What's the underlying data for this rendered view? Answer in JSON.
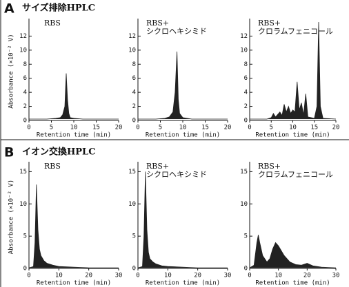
{
  "panels": [
    {
      "letter": "A",
      "title": "サイズ排除HPLC"
    },
    {
      "letter": "B",
      "title": "イオン交換HPLC"
    }
  ],
  "chart_data": [
    {
      "type": "area",
      "title": [
        "RBS"
      ],
      "y_label": "Absorbance (×10⁻² V)",
      "x_label": "Retention time (min)",
      "color": "#222222",
      "x": [
        0,
        2,
        4,
        6,
        7,
        7.5,
        8,
        8.3,
        8.6,
        8.9,
        9.2,
        10,
        12,
        16,
        20
      ],
      "values": [
        0.2,
        0.2,
        0.2,
        0.3,
        0.4,
        0.8,
        2,
        6.7,
        3,
        1,
        0.4,
        0.3,
        0.2,
        0.2,
        0.2
      ],
      "xlim": [
        0,
        20
      ],
      "xticks": [
        0,
        5,
        10,
        15,
        20
      ],
      "ylim": [
        0,
        14
      ],
      "yticks": [
        0,
        2,
        4,
        6,
        8,
        10,
        12
      ]
    },
    {
      "type": "area",
      "title": [
        "RBS+",
        "シクロヘキシミド"
      ],
      "x_label": "Retention time (min)",
      "color": "#222222",
      "x": [
        0,
        2,
        4,
        6,
        7,
        7.8,
        8.3,
        8.7,
        9,
        9.3,
        10,
        12,
        16,
        20
      ],
      "values": [
        0.2,
        0.2,
        0.2,
        0.3,
        0.5,
        1.2,
        4,
        9.8,
        3,
        1,
        0.4,
        0.2,
        0.2,
        0.2
      ],
      "xlim": [
        0,
        20
      ],
      "xticks": [
        0,
        5,
        10,
        15,
        20
      ],
      "ylim": [
        0,
        14
      ],
      "yticks": [
        0,
        2,
        4,
        6,
        8,
        10,
        12
      ]
    },
    {
      "type": "area",
      "title": [
        "RBS+",
        "クロラムフェニコール"
      ],
      "x_label": "Retention time (min)",
      "color": "#222222",
      "x": [
        0,
        4,
        5,
        5.5,
        6,
        7,
        7.5,
        8,
        8.5,
        9,
        9.5,
        10,
        10.5,
        11,
        11.5,
        12,
        12.5,
        13,
        13.5,
        15,
        15.6,
        16,
        16.4,
        17,
        20
      ],
      "values": [
        0.2,
        0.2,
        0.4,
        1,
        0.5,
        1.2,
        0.7,
        2.3,
        1.2,
        2,
        1,
        1.5,
        1.2,
        5.5,
        1.5,
        2.5,
        0.8,
        3.8,
        0.5,
        0.3,
        2,
        14,
        2,
        0.3,
        0.2
      ],
      "xlim": [
        0,
        20
      ],
      "xticks": [
        0,
        5,
        10,
        15,
        20
      ],
      "ylim": [
        0,
        14
      ],
      "yticks": [
        0,
        2,
        4,
        6,
        8,
        10,
        12
      ]
    },
    {
      "type": "area",
      "title": [
        "RBS"
      ],
      "y_label": "Absorbance (×10⁻² V)",
      "x_label": "Retention time (min)",
      "color": "#222222",
      "x": [
        0,
        1.5,
        2,
        2.5,
        3,
        3.5,
        4,
        5,
        6,
        8,
        10,
        15,
        20,
        30
      ],
      "values": [
        0.1,
        0.3,
        4,
        13,
        6,
        3,
        2,
        1.2,
        0.8,
        0.5,
        0.3,
        0.2,
        0.1,
        0.1
      ],
      "xlim": [
        0,
        30
      ],
      "xticks": [
        0,
        10,
        20,
        30
      ],
      "ylim": [
        0,
        16
      ],
      "yticks": [
        0,
        5,
        10,
        15
      ]
    },
    {
      "type": "area",
      "title": [
        "RBS+",
        "シクロヘキシミド"
      ],
      "x_label": "Retention time (min)",
      "color": "#222222",
      "x": [
        0,
        1.5,
        2,
        2.5,
        3,
        3.5,
        4,
        5,
        6,
        8,
        10,
        15,
        20,
        30
      ],
      "values": [
        0.1,
        0.3,
        5,
        15,
        6,
        2.5,
        1.5,
        1,
        0.7,
        0.4,
        0.3,
        0.2,
        0.1,
        0.1
      ],
      "xlim": [
        0,
        30
      ],
      "xticks": [
        0,
        10,
        20,
        30
      ],
      "ylim": [
        0,
        16
      ],
      "yticks": [
        0,
        5,
        10,
        15
      ]
    },
    {
      "type": "area",
      "title": [
        "RBS+",
        "クロラムフェニコール"
      ],
      "x_label": "Retention time (min)",
      "color": "#222222",
      "x": [
        0,
        1.5,
        2.5,
        3,
        3.5,
        4.5,
        6,
        7,
        8,
        9,
        10,
        12,
        14,
        16,
        18,
        20,
        22,
        25,
        30
      ],
      "values": [
        0.1,
        0.5,
        4,
        5.2,
        4,
        2,
        1,
        1.5,
        3,
        4,
        3.5,
        2,
        1,
        0.6,
        0.5,
        0.8,
        0.4,
        0.2,
        0.1
      ],
      "xlim": [
        0,
        30
      ],
      "xticks": [
        0,
        10,
        20,
        30
      ],
      "ylim": [
        0,
        16
      ],
      "yticks": [
        0,
        5,
        10,
        15
      ]
    }
  ]
}
